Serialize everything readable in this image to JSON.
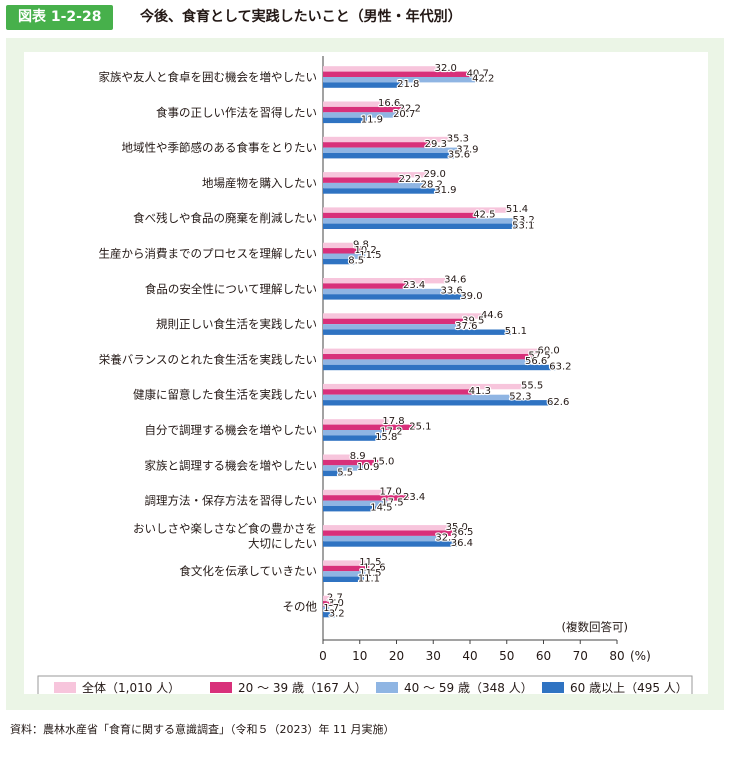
{
  "header": {
    "figure_label": "図表 1-2-28",
    "title": "今後、食育として実践したいこと（男性・年代別）"
  },
  "chart_data": {
    "type": "bar",
    "orientation": "horizontal",
    "title": "今後、食育として実践したいこと（男性・年代別）",
    "categories": [
      "家族や友人と食卓を囲む機会を増やしたい",
      "食事の正しい作法を習得したい",
      "地域性や季節感のある食事をとりたい",
      "地場産物を購入したい",
      "食べ残しや食品の廃棄を削減したい",
      "生産から消費までのプロセスを理解したい",
      "食品の安全性について理解したい",
      "規則正しい食生活を実践したい",
      "栄養バランスのとれた食生活を実践したい",
      "健康に留意した食生活を実践したい",
      "自分で調理する機会を増やしたい",
      "家族と調理する機会を増やしたい",
      "調理方法・保存方法を習得したい",
      "おいしさや楽しさなど食の豊かさを\n大切にしたい",
      "食文化を伝承していきたい",
      "その他"
    ],
    "series": [
      {
        "name": "全体（1,010 人）",
        "color": "#f7c5dc",
        "values": [
          32.0,
          16.6,
          35.3,
          29.0,
          51.4,
          9.8,
          34.6,
          44.6,
          60.0,
          55.5,
          17.8,
          8.9,
          17.0,
          35.0,
          11.5,
          2.7
        ]
      },
      {
        "name": "20 ～ 39 歳（167 人）",
        "color": "#d8307a",
        "values": [
          40.7,
          22.2,
          29.3,
          22.2,
          42.5,
          10.2,
          23.4,
          39.5,
          57.5,
          41.3,
          25.1,
          15.0,
          23.4,
          36.5,
          12.6,
          3.0
        ]
      },
      {
        "name": "40 ～ 59 歳（348 人）",
        "color": "#8fb5e3",
        "values": [
          42.2,
          20.7,
          37.9,
          28.2,
          53.2,
          11.5,
          33.6,
          37.6,
          56.6,
          52.3,
          17.2,
          10.9,
          17.5,
          32.2,
          11.5,
          1.7
        ]
      },
      {
        "name": "60 歳以上（495 人）",
        "color": "#2f73c2",
        "values": [
          21.8,
          11.9,
          35.6,
          31.9,
          53.1,
          8.5,
          39.0,
          51.1,
          63.2,
          62.6,
          15.8,
          5.5,
          14.5,
          36.4,
          11.1,
          3.2
        ]
      }
    ],
    "xlim": [
      0,
      80
    ],
    "xticks": [
      "0",
      "10",
      "20",
      "30",
      "40",
      "50",
      "60",
      "70",
      "80"
    ],
    "xunit": "(%)",
    "note": "(複数回答可)",
    "legend_position": "bottom"
  },
  "source": "資料：農林水産省「食育に関する意識調査」（令和５（2023）年 11 月実施）"
}
